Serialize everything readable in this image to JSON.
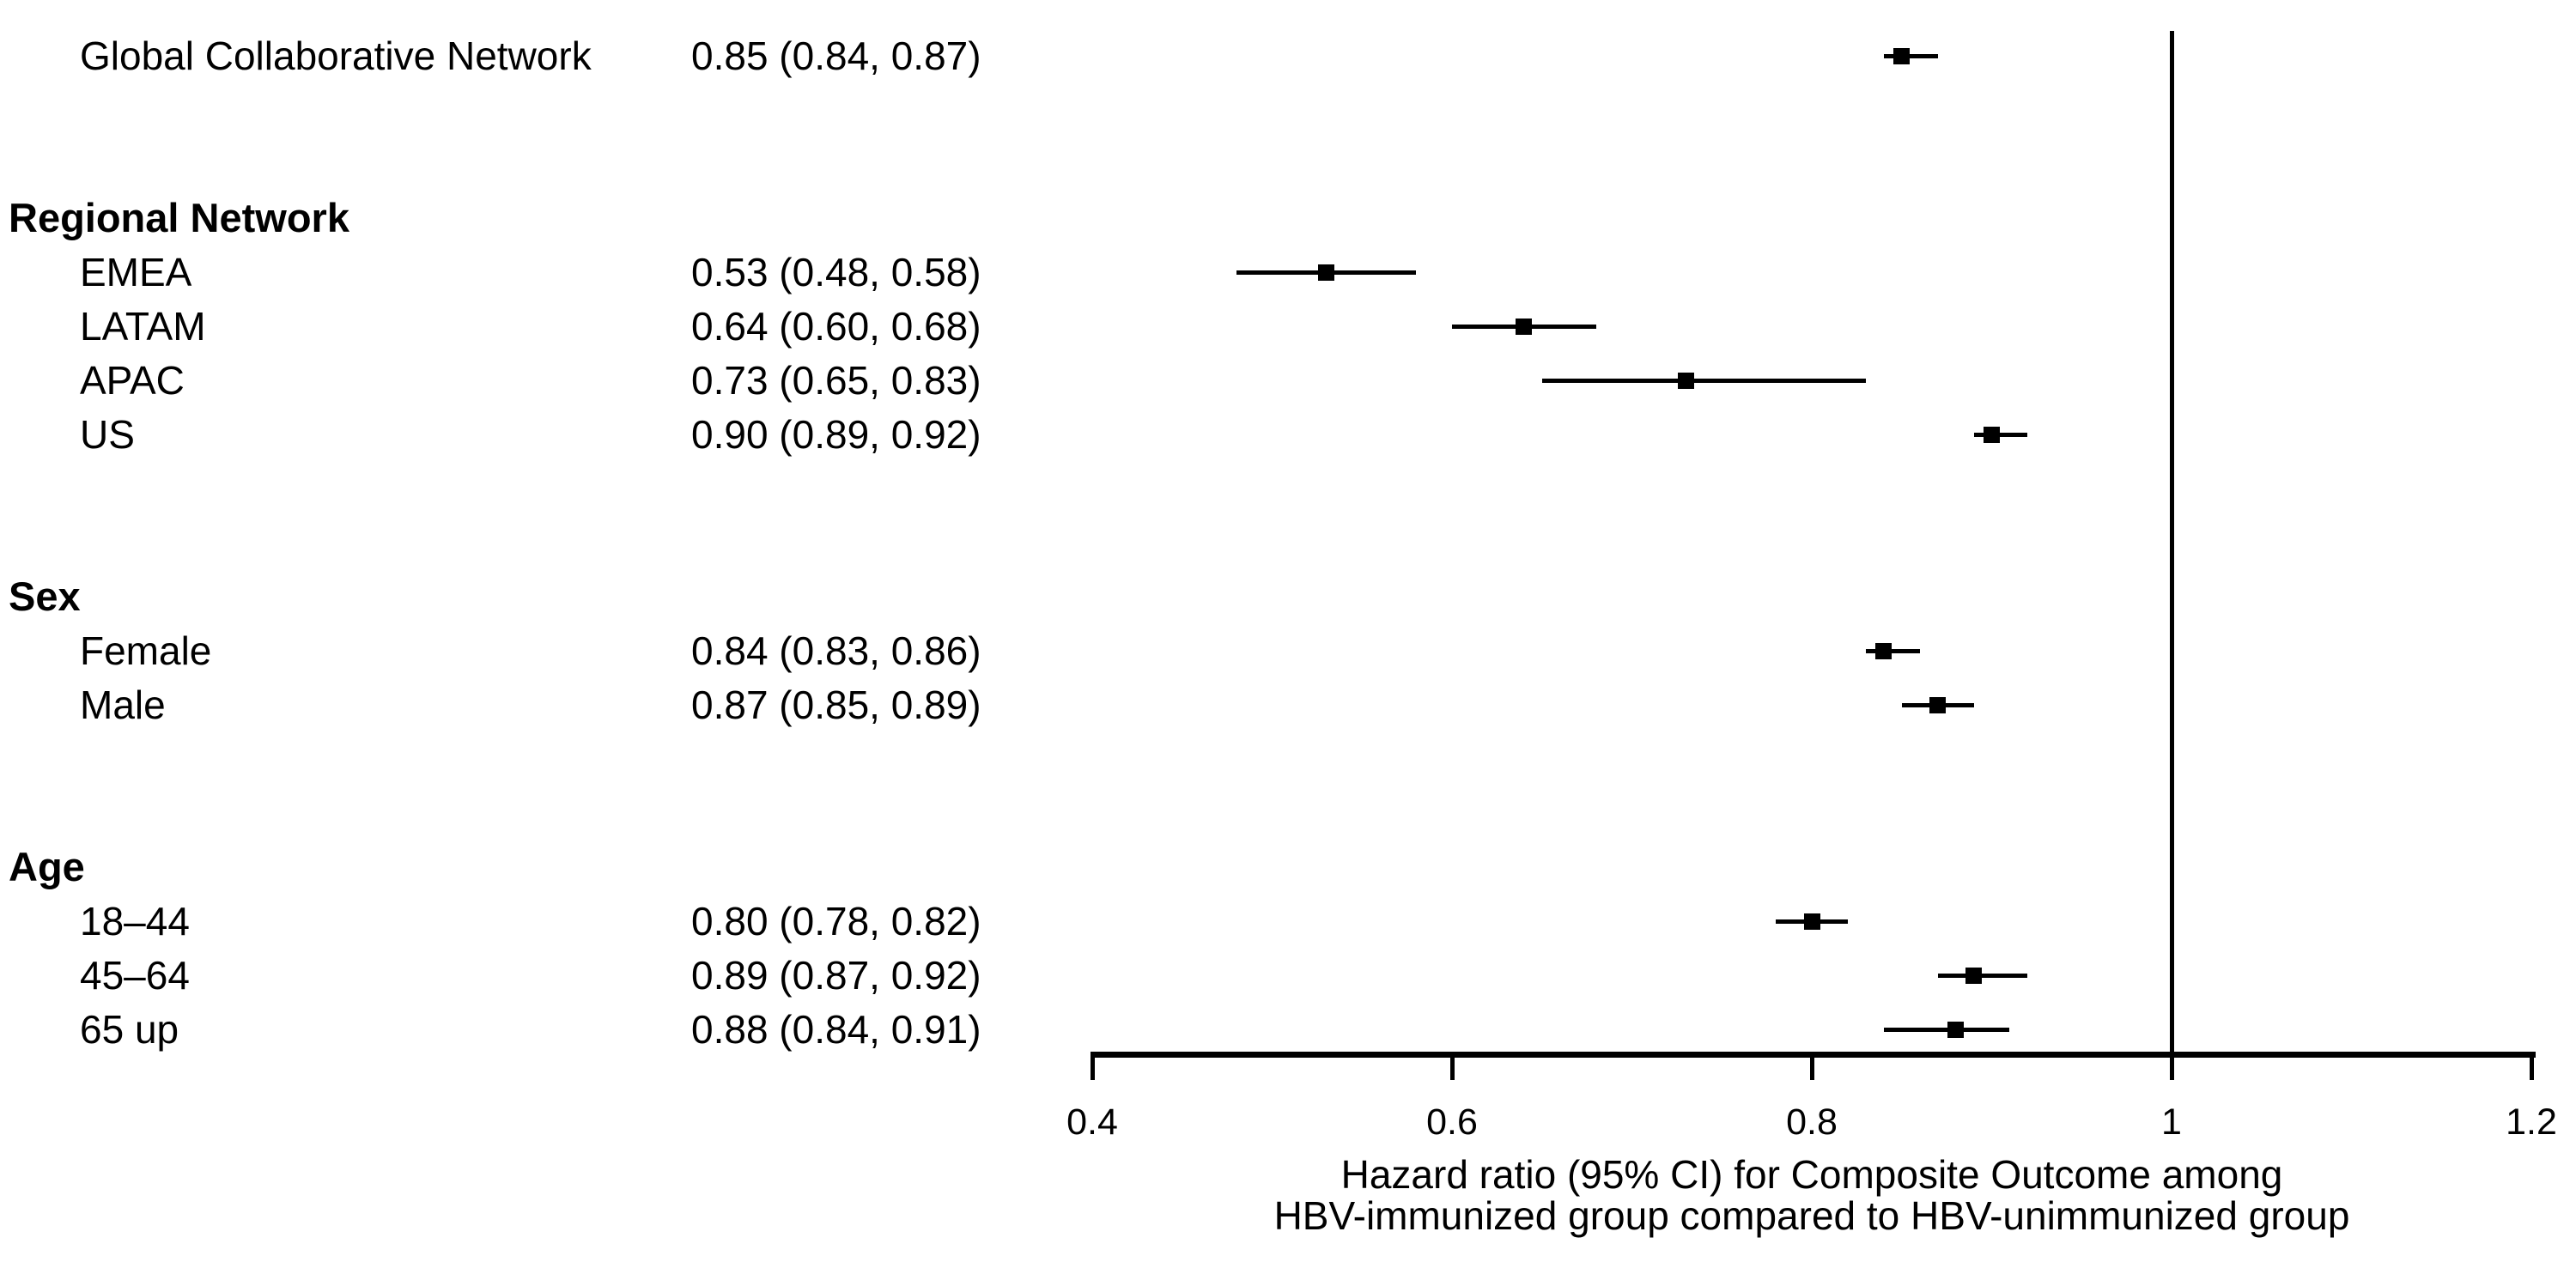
{
  "chart_data": {
    "type": "scatter",
    "variant": "forest_plot",
    "title": "",
    "xlabel_lines": [
      "Hazard ratio (95% CI) for Composite Outcome among",
      "HBV-immunized group compared to HBV-unimmunized group"
    ],
    "x_ticks": [
      "0.4",
      "0.6",
      "0.8",
      "1",
      "1.2"
    ],
    "x_tick_values": [
      0.4,
      0.6,
      0.8,
      1.0,
      1.2
    ],
    "xlim": [
      0.4,
      1.2
    ],
    "reference_line_x": 1,
    "grid": false,
    "legend": false,
    "colors": {
      "foreground": "#000000",
      "background": "#ffffff"
    },
    "rows": [
      {
        "kind": "item",
        "label": "Global Collaborative Network",
        "estimate_label": "0.85 (0.84, 0.87)",
        "hr": 0.85,
        "ci_low": 0.84,
        "ci_high": 0.87
      },
      {
        "kind": "spacer"
      },
      {
        "kind": "spacer"
      },
      {
        "kind": "header",
        "label": "Regional Network"
      },
      {
        "kind": "item",
        "label": "EMEA",
        "estimate_label": "0.53 (0.48, 0.58)",
        "hr": 0.53,
        "ci_low": 0.48,
        "ci_high": 0.58
      },
      {
        "kind": "item",
        "label": "LATAM",
        "estimate_label": "0.64 (0.60, 0.68)",
        "hr": 0.64,
        "ci_low": 0.6,
        "ci_high": 0.68
      },
      {
        "kind": "item",
        "label": "APAC",
        "estimate_label": "0.73 (0.65, 0.83)",
        "hr": 0.73,
        "ci_low": 0.65,
        "ci_high": 0.83
      },
      {
        "kind": "item",
        "label": "US",
        "estimate_label": "0.90 (0.89, 0.92)",
        "hr": 0.9,
        "ci_low": 0.89,
        "ci_high": 0.92
      },
      {
        "kind": "spacer"
      },
      {
        "kind": "spacer"
      },
      {
        "kind": "header",
        "label": "Sex"
      },
      {
        "kind": "item",
        "label": "Female",
        "estimate_label": "0.84 (0.83, 0.86)",
        "hr": 0.84,
        "ci_low": 0.83,
        "ci_high": 0.86
      },
      {
        "kind": "item",
        "label": "Male",
        "estimate_label": "0.87 (0.85, 0.89)",
        "hr": 0.87,
        "ci_low": 0.85,
        "ci_high": 0.89
      },
      {
        "kind": "spacer"
      },
      {
        "kind": "spacer"
      },
      {
        "kind": "header",
        "label": "Age"
      },
      {
        "kind": "item",
        "label": "18–44",
        "estimate_label": "0.80 (0.78, 0.82)",
        "hr": 0.8,
        "ci_low": 0.78,
        "ci_high": 0.82
      },
      {
        "kind": "item",
        "label": "45–64",
        "estimate_label": "0.89 (0.87, 0.92)",
        "hr": 0.89,
        "ci_low": 0.87,
        "ci_high": 0.92
      },
      {
        "kind": "item",
        "label": "65 up",
        "estimate_label": "0.88 (0.84, 0.91)",
        "hr": 0.88,
        "ci_low": 0.84,
        "ci_high": 0.91
      }
    ]
  }
}
